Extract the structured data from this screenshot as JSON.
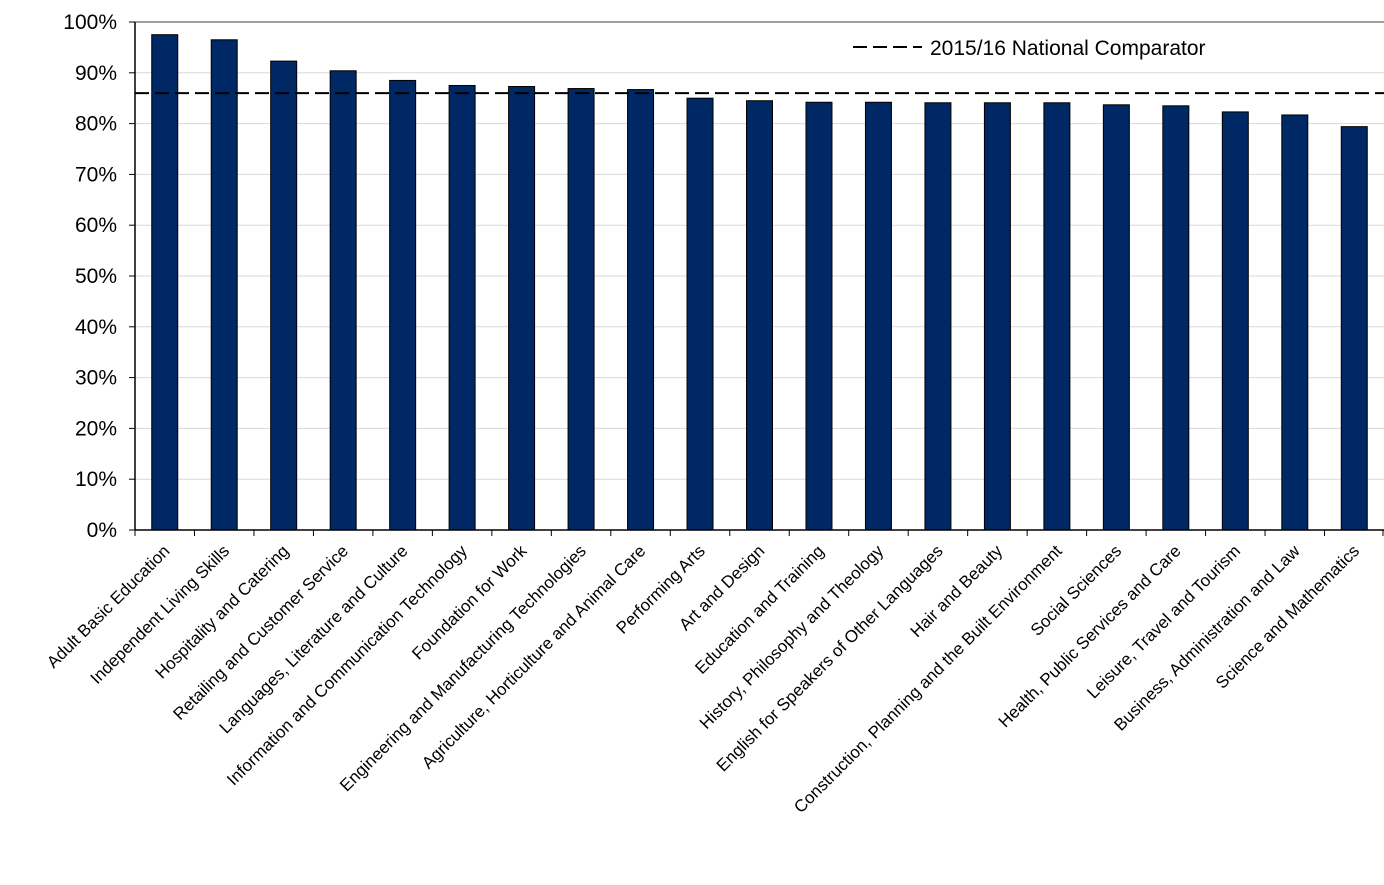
{
  "chart_data": {
    "type": "bar",
    "categories": [
      "Adult Basic Education",
      "Independent Living Skills",
      "Hospitality and Catering",
      "Retailing and Customer Service",
      "Languages, Literature and Culture",
      "Information and Communication Technology",
      "Foundation for Work",
      "Engineering and Manufacturing Technologies",
      "Agriculture, Horticulture and Animal Care",
      "Performing Arts",
      "Art and Design",
      "Education and Training",
      "History, Philosophy and Theology",
      "English for Speakers of Other Languages",
      "Hair and Beauty",
      "Construction, Planning and the Built Environment",
      "Social Sciences",
      "Health, Public Services and Care",
      "Leisure, Travel and Tourism",
      "Business, Administration and Law",
      "Science and Mathematics"
    ],
    "values": [
      97.5,
      96.5,
      92.3,
      90.4,
      88.5,
      87.5,
      87.3,
      86.9,
      86.7,
      85.0,
      84.5,
      84.2,
      84.2,
      84.1,
      84.1,
      84.1,
      83.7,
      83.5,
      82.3,
      81.7,
      79.4
    ],
    "yticks": [
      "0%",
      "10%",
      "20%",
      "30%",
      "40%",
      "50%",
      "60%",
      "70%",
      "80%",
      "90%",
      "100%"
    ],
    "ylim": [
      0,
      100
    ],
    "reference_line": {
      "label": "2015/16 National Comparator",
      "value": 86.0,
      "style": "dashed"
    },
    "legend_position": "top-right",
    "grid": "horizontal",
    "bar_color": "#002864",
    "bar_edge_color": "#000000",
    "title": "",
    "xlabel": "",
    "ylabel": ""
  }
}
